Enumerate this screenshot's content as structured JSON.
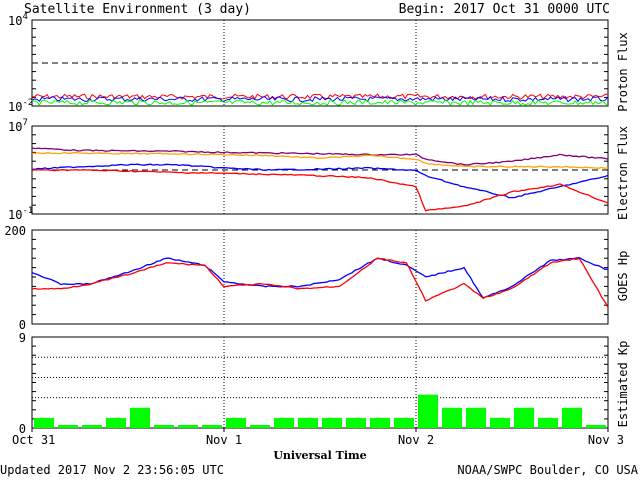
{
  "header": {
    "title": "Satellite Environment (3 day)",
    "begin": "Begin:  2017 Oct 31 0000 UTC"
  },
  "footer": {
    "updated": "Updated 2017 Nov  2 23:56:05 UTC",
    "source": "NOAA/SWPC Boulder, CO USA"
  },
  "colors": {
    "red": "#ff0000",
    "blue": "#0000ff",
    "green": "#00ff00",
    "orange": "#ffa500",
    "purple": "#800080",
    "kp_bar": "#00ff00"
  },
  "chart_data": [
    {
      "type": "line",
      "panel": "proton",
      "ylabel": "Proton Flux",
      "yscale": "log",
      "ylim": [
        0.01,
        10000
      ],
      "yticks": [
        {
          "value": 10000,
          "base": "10",
          "exp": "4"
        },
        {
          "value": 0.01,
          "base": "10",
          "exp": "-2"
        }
      ],
      "threshold": 10,
      "x": [
        0,
        0.25,
        0.5,
        0.75,
        1,
        1.25,
        1.5,
        1.75,
        2,
        2.25,
        2.5,
        2.75,
        3
      ],
      "series": [
        {
          "color": "red",
          "values": [
            0.045,
            0.046,
            0.045,
            0.044,
            0.045,
            0.045,
            0.044,
            0.045,
            0.046,
            0.045,
            0.045,
            0.044,
            0.045
          ]
        },
        {
          "color": "blue",
          "values": [
            0.03,
            0.03,
            0.031,
            0.03,
            0.03,
            0.029,
            0.03,
            0.03,
            0.031,
            0.03,
            0.03,
            0.03,
            0.03
          ]
        },
        {
          "color": "green",
          "values": [
            0.017,
            0.017,
            0.018,
            0.017,
            0.017,
            0.017,
            0.017,
            0.018,
            0.017,
            0.017,
            0.017,
            0.017,
            0.017
          ]
        }
      ]
    },
    {
      "type": "line",
      "panel": "electron",
      "ylabel": "Electron Flux",
      "yscale": "log",
      "ylim": [
        0.1,
        10000000
      ],
      "yticks": [
        {
          "value": 10000000,
          "base": "10",
          "exp": "7"
        },
        {
          "value": 0.1,
          "base": "10",
          "exp": "-1"
        }
      ],
      "threshold": 1000,
      "x": [
        0,
        0.25,
        0.5,
        0.75,
        1,
        1.25,
        1.5,
        1.75,
        2,
        2.05,
        2.25,
        2.5,
        2.75,
        3
      ],
      "series": [
        {
          "color": "purple",
          "values": [
            100000,
            60000,
            55000,
            50000,
            40000,
            35000,
            30000,
            25000,
            25000,
            10000,
            3000,
            6000,
            25000,
            10000
          ]
        },
        {
          "color": "orange",
          "values": [
            35000,
            35000,
            30000,
            30000,
            25000,
            20000,
            12000,
            20000,
            10000,
            4000,
            2000,
            2000,
            2000,
            1500
          ]
        },
        {
          "color": "blue",
          "values": [
            1200,
            2000,
            3000,
            3000,
            1500,
            1000,
            1200,
            1500,
            900,
            300,
            30,
            3,
            30,
            300
          ]
        },
        {
          "color": "red",
          "values": [
            1000,
            1000,
            800,
            600,
            500,
            400,
            300,
            200,
            30,
            0.2,
            0.5,
            10,
            50,
            1
          ]
        }
      ]
    },
    {
      "type": "line",
      "panel": "goes-hp",
      "ylabel": "GOES Hp",
      "yscale": "linear",
      "ylim": [
        0,
        200
      ],
      "yticks": [
        {
          "value": 200,
          "label": "200"
        },
        {
          "value": 0,
          "label": "0"
        }
      ],
      "x": [
        0,
        0.15,
        0.3,
        0.5,
        0.7,
        0.9,
        1.0,
        1.2,
        1.4,
        1.6,
        1.8,
        1.95,
        2.05,
        2.25,
        2.35,
        2.5,
        2.7,
        2.85,
        3.0
      ],
      "series": [
        {
          "color": "blue",
          "values": [
            110,
            85,
            85,
            110,
            140,
            125,
            90,
            80,
            80,
            95,
            140,
            125,
            100,
            120,
            55,
            80,
            135,
            140,
            115
          ]
        },
        {
          "color": "red",
          "values": [
            75,
            75,
            85,
            105,
            130,
            125,
            80,
            85,
            75,
            80,
            140,
            130,
            50,
            85,
            55,
            75,
            130,
            140,
            35
          ]
        }
      ]
    },
    {
      "type": "bar",
      "panel": "kp",
      "ylabel": "Estimated Kp",
      "ylim": [
        0,
        9
      ],
      "yticks": [
        {
          "value": 9,
          "label": "9"
        },
        {
          "value": 0,
          "label": "0"
        }
      ],
      "grid_values": [
        3,
        5,
        7,
        9
      ],
      "values": [
        1,
        0.3,
        0.3,
        1,
        2,
        0.3,
        0.3,
        0.3,
        1,
        0.3,
        1,
        1,
        1,
        1,
        1,
        1,
        3.3,
        2,
        2,
        1,
        2,
        1,
        2,
        0.3
      ]
    }
  ],
  "x_axis": {
    "title": "Universal Time",
    "labels": [
      "Oct 31",
      "Nov 1",
      "Nov 2",
      "Nov 3"
    ],
    "range": [
      0,
      3
    ]
  }
}
